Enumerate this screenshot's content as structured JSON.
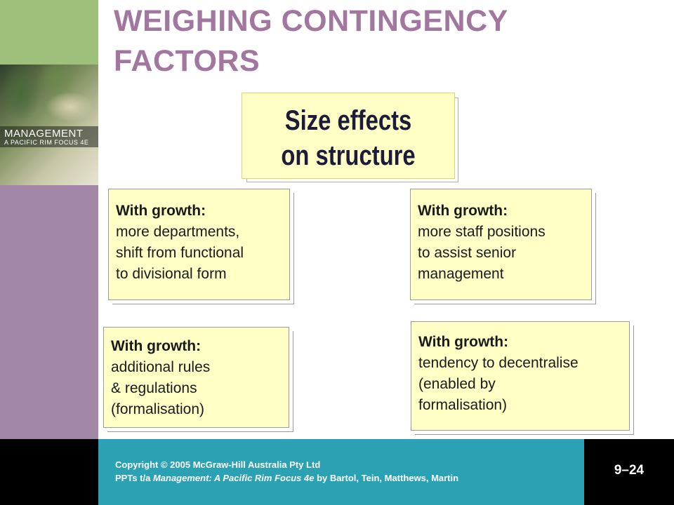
{
  "slide": {
    "title_line1": "WEIGHING CONTINGENCY",
    "title_line2": "FACTORS"
  },
  "cover": {
    "title": "MANAGEMENT",
    "subtitle": "A PACIFIC RIM FOCUS 4E"
  },
  "center": {
    "line1": "Size effects",
    "line2": "on structure"
  },
  "boxes": [
    {
      "head": "With growth:",
      "lines": [
        "more departments,",
        "shift from functional",
        "to divisional form"
      ]
    },
    {
      "head": "With growth:",
      "lines": [
        "more staff positions",
        "to assist senior",
        "management"
      ]
    },
    {
      "head": "With growth:",
      "lines": [
        "additional rules",
        "& regulations",
        "(formalisation)"
      ]
    },
    {
      "head": "With growth:",
      "lines": [
        "tendency to decentralise",
        "(enabled by",
        "formalisation)"
      ]
    }
  ],
  "footer": {
    "copyright": "Copyright © 2005 McGraw-Hill Australia Pty Ltd",
    "ppts_prefix": "PPTs t/a ",
    "book_title": "Management: A Pacific Rim Focus 4e",
    "ppts_suffix": " by Bartol, Tein, Matthews, Martin",
    "page": "9–24"
  },
  "colors": {
    "title": "#a2779f",
    "box_fill": "#ffffc6",
    "footer_teal": "#2ba2b3",
    "left_purple": "#a287a9",
    "left_green": "#9fc07a"
  }
}
